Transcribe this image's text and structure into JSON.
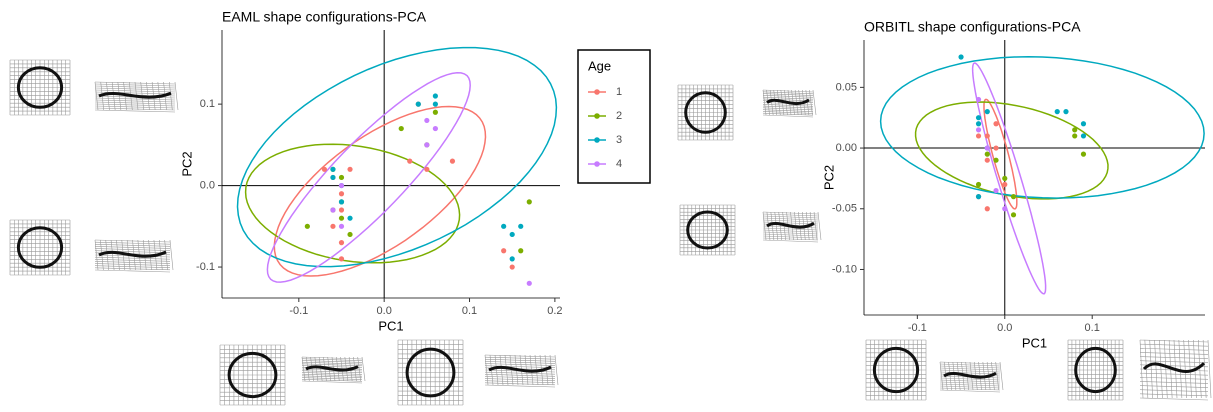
{
  "chart_data": [
    {
      "type": "scatter",
      "title": "EAML shape configurations-PCA",
      "x_label": "PC1",
      "y_label": "PC2",
      "xlim": [
        -0.19,
        0.206
      ],
      "ylim": [
        -0.138,
        0.191
      ],
      "xticks": [
        -0.1,
        {
          "value": 0,
          "label": "0.0"
        },
        0.1,
        0.2
      ],
      "yticks": [
        -0.1,
        {
          "value": 0,
          "label": "0.0"
        },
        0.1
      ],
      "zero_lines": true,
      "legend_title": "Age",
      "legend_position": "right",
      "series": [
        {
          "name": "1",
          "color": "#F8766D",
          "x": [
            -0.07,
            -0.06,
            -0.04,
            -0.05,
            -0.05,
            -0.06,
            -0.05,
            -0.05,
            0.03,
            0.05,
            0.08,
            0.04,
            0.14,
            0.15
          ],
          "y": [
            0.02,
            0.01,
            0.02,
            -0.01,
            -0.03,
            -0.05,
            -0.07,
            -0.09,
            0.03,
            0.02,
            0.03,
            0.1,
            -0.08,
            -0.1
          ],
          "ellipse": {
            "center": [
              -0.005,
              -0.007
            ],
            "axis1": [
              0.12,
              0.085
            ],
            "axis2": [
              -0.03,
              0.06
            ]
          }
        },
        {
          "name": "2",
          "color": "#7CAE00",
          "x": [
            -0.09,
            -0.06,
            -0.05,
            -0.05,
            -0.06,
            -0.05,
            0.02,
            0.06,
            0.05,
            0.16,
            0.17,
            -0.04
          ],
          "y": [
            -0.05,
            0.02,
            0.01,
            -0.02,
            -0.03,
            -0.04,
            0.07,
            0.09,
            0.05,
            -0.08,
            -0.02,
            -0.06
          ],
          "ellipse": {
            "center": [
              -0.037,
              -0.022
            ],
            "axis1": [
              0.125,
              -0.02
            ],
            "axis2": [
              0.01,
              0.07
            ]
          }
        },
        {
          "name": "3",
          "color": "#00A9BF",
          "x": [
            -0.06,
            -0.05,
            -0.06,
            -0.04,
            0.04,
            0.06,
            0.06,
            0.14,
            0.15,
            0.16,
            0.15,
            -0.05
          ],
          "y": [
            0.01,
            0.0,
            0.02,
            -0.04,
            0.1,
            0.1,
            0.11,
            -0.05,
            -0.06,
            -0.05,
            -0.09,
            -0.02
          ],
          "ellipse": {
            "center": [
              0.015,
              0.035
            ],
            "axis1": [
              0.18,
              0.09
            ],
            "axis2": [
              -0.05,
              0.1
            ]
          }
        },
        {
          "name": "4",
          "color": "#C77CFF",
          "x": [
            -0.05,
            -0.06,
            0.05,
            0.05,
            0.06,
            0.17,
            -0.05
          ],
          "y": [
            0.0,
            -0.03,
            0.08,
            0.05,
            0.07,
            -0.12,
            -0.05
          ],
          "ellipse": {
            "center": [
              -0.018,
              0.01
            ],
            "axis1": [
              0.115,
              0.125
            ],
            "axis2": [
              -0.03,
              0.03
            ]
          }
        }
      ]
    },
    {
      "type": "scatter",
      "title": "ORBITL shape configurations-PCA",
      "x_label": "PC1",
      "y_label": "PC2",
      "xlim": [
        -0.161,
        0.229
      ],
      "ylim": [
        -0.1375,
        0.089
      ],
      "xticks": [
        -0.1,
        {
          "value": 0,
          "label": "0.0"
        },
        0.1
      ],
      "yticks": [
        {
          "value": -0.1,
          "label": "-0.10"
        },
        -0.05,
        {
          "value": 0,
          "label": "0.00"
        },
        0.05
      ],
      "zero_lines": true,
      "series": [
        {
          "name": "1",
          "color": "#F8766D",
          "x": [
            -0.02,
            -0.01,
            -0.02,
            -0.01,
            -0.03,
            -0.03,
            -0.02,
            0.0
          ],
          "y": [
            0.01,
            0.0,
            -0.01,
            0.02,
            0.01,
            -0.04,
            -0.05,
            -0.03
          ],
          "ellipse": {
            "center": [
              -0.005,
              -0.005
            ],
            "axis1": [
              -0.017,
              0.045
            ],
            "axis2": [
              0.008,
              0.003
            ]
          }
        },
        {
          "name": "2",
          "color": "#7CAE00",
          "x": [
            0.09,
            0.08,
            0.08,
            0.01,
            -0.01,
            -0.02,
            0.0,
            0.01,
            -0.03
          ],
          "y": [
            -0.005,
            0.01,
            0.015,
            -0.04,
            -0.01,
            -0.005,
            -0.025,
            -0.055,
            -0.03
          ],
          "ellipse": {
            "center": [
              0.008,
              -0.002
            ],
            "axis1": [
              0.11,
              -0.015
            ],
            "axis2": [
              0.005,
              0.037
            ]
          }
        },
        {
          "name": "3",
          "color": "#00A9BF",
          "x": [
            -0.05,
            0.06,
            0.07,
            0.09,
            0.09,
            -0.03,
            -0.03,
            -0.02,
            -0.03,
            -0.02
          ],
          "y": [
            0.075,
            0.03,
            0.03,
            0.02,
            0.01,
            0.02,
            0.025,
            0.0,
            -0.04,
            0.03
          ],
          "ellipse": {
            "center": [
              0.043,
              0.017
            ],
            "axis1": [
              0.185,
              -0.005
            ],
            "axis2": [
              0.0,
              0.058
            ]
          }
        },
        {
          "name": "4",
          "color": "#C77CFF",
          "x": [
            -0.03,
            -0.03,
            -0.02,
            0.0,
            -0.01
          ],
          "y": [
            0.04,
            0.015,
            0.0,
            -0.05,
            -0.035
          ],
          "ellipse": {
            "center": [
              0.005,
              -0.025
            ],
            "axis1": [
              -0.04,
              0.095
            ],
            "axis2": [
              0.012,
              0.004
            ]
          }
        }
      ]
    }
  ]
}
